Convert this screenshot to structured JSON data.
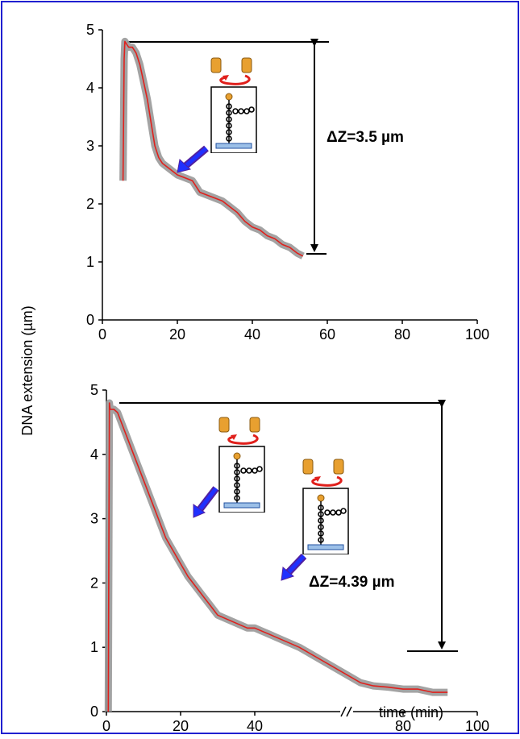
{
  "chart_data": [
    {
      "type": "line",
      "ylabel": "DNA extension (µm)",
      "annotation": "ΔZ=3.5 µm",
      "xlim": [
        0,
        100
      ],
      "ylim": [
        0,
        5
      ],
      "xticks": [
        0,
        20,
        40,
        60,
        80,
        100
      ],
      "yticks": [
        0,
        1,
        2,
        3,
        4,
        5
      ],
      "x": [
        5.5,
        5.8,
        6,
        6.5,
        7,
        8,
        9,
        10,
        11,
        12,
        13,
        14,
        15,
        16,
        18,
        20,
        22,
        24,
        26,
        28,
        30,
        32,
        34,
        36,
        38,
        40,
        42,
        44,
        46,
        48,
        50,
        52,
        53.5
      ],
      "series": [
        {
          "color": "#e0201c",
          "band_color": "#999999",
          "values": [
            2.4,
            4.5,
            4.8,
            4.75,
            4.7,
            4.7,
            4.6,
            4.4,
            4.1,
            3.8,
            3.4,
            3.0,
            2.8,
            2.7,
            2.6,
            2.5,
            2.45,
            2.4,
            2.2,
            2.15,
            2.1,
            2.05,
            1.95,
            1.85,
            1.7,
            1.6,
            1.55,
            1.45,
            1.4,
            1.3,
            1.25,
            1.15,
            1.1
          ]
        }
      ]
    },
    {
      "type": "line",
      "xlabel": "time (min)",
      "annotation": "ΔZ=4.39 µm",
      "xlim": [
        0,
        100
      ],
      "ylim": [
        0,
        5
      ],
      "xticks": [
        0,
        20,
        40,
        80,
        100
      ],
      "yticks": [
        0,
        1,
        2,
        3,
        4,
        5
      ],
      "x": [
        0.5,
        0.8,
        1,
        2,
        3,
        4,
        6,
        8,
        10,
        12,
        14,
        16,
        18,
        20,
        22,
        24,
        26,
        28,
        30,
        32,
        34,
        36,
        38,
        40,
        42,
        44,
        46,
        48,
        50,
        52,
        68.5,
        72,
        76,
        80,
        84,
        88,
        92
      ],
      "series": [
        {
          "color": "#e0201c",
          "band_color": "#999999",
          "values": [
            0,
            4.8,
            4.7,
            4.7,
            4.65,
            4.5,
            4.2,
            3.9,
            3.6,
            3.3,
            3.0,
            2.7,
            2.5,
            2.3,
            2.1,
            1.95,
            1.8,
            1.65,
            1.5,
            1.45,
            1.4,
            1.35,
            1.3,
            1.3,
            1.25,
            1.2,
            1.15,
            1.1,
            1.05,
            1.0,
            0.45,
            0.4,
            0.38,
            0.35,
            0.35,
            0.3,
            0.3
          ]
        }
      ]
    }
  ]
}
